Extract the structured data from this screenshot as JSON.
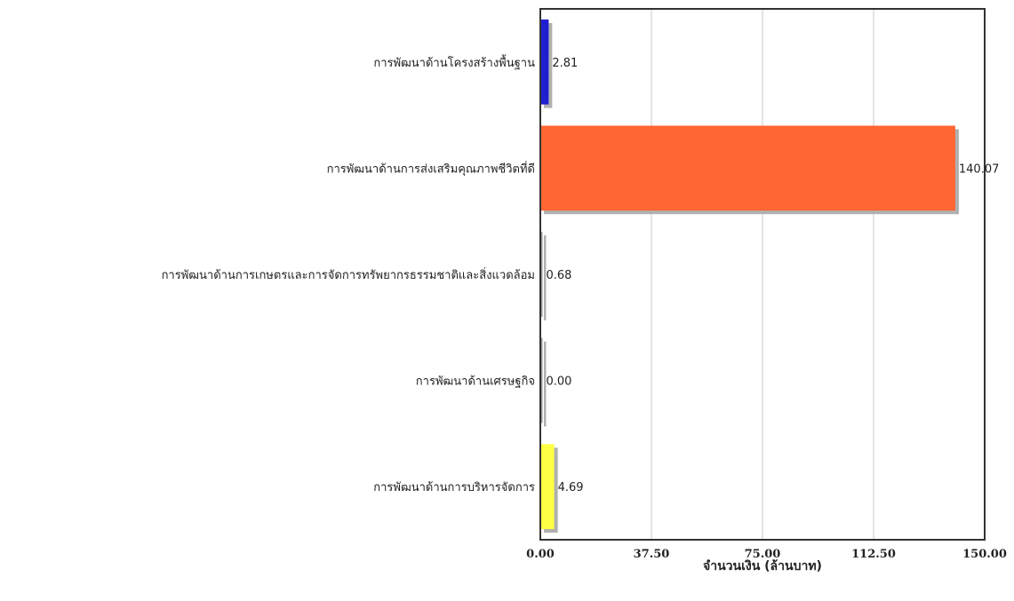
{
  "chart_data": {
    "type": "bar",
    "orientation": "horizontal",
    "categories": [
      "การพัฒนาด้านโครงสร้างพื้นฐาน",
      "การพัฒนาด้านการส่งเสริมคุณภาพชีวิตที่ดี",
      "การพัฒนาด้านการเกษตรและการจัดการทรัพยากรธรรมชาติและสิ่งแวดล้อม",
      "การพัฒนาด้านเศรษฐกิจ",
      "การพัฒนาด้านการบริหารจัดการ"
    ],
    "values": [
      2.81,
      140.07,
      0.68,
      0.0,
      4.69
    ],
    "value_labels": [
      "2.81",
      "140.07",
      "0.68",
      "0.00",
      "4.69"
    ],
    "colors": [
      "#1f1fd1",
      "#ff6633",
      "#9aa0a6",
      "#9aa0a6",
      "#ffff44"
    ],
    "xlabel": "จำนวนเงิน (ล้านบาท)",
    "xlim": [
      0,
      150
    ],
    "xticks": [
      "0.00",
      "37.50",
      "75.00",
      "112.50",
      "150.00"
    ],
    "grid": true
  }
}
